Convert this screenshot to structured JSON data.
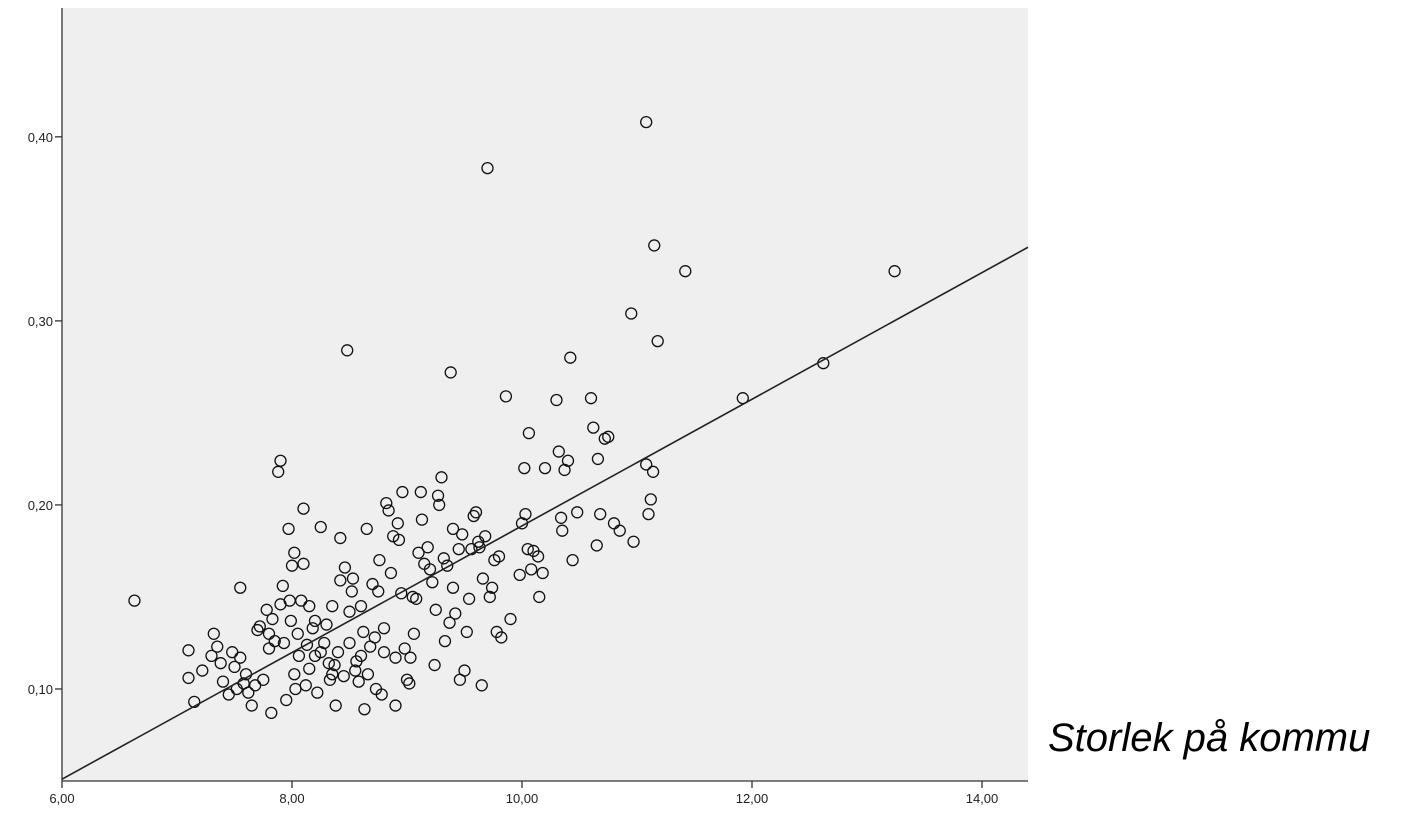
{
  "side_text": "Storlek på kommu",
  "chart_data": {
    "type": "scatter",
    "title": "",
    "xlabel": "",
    "ylabel": "",
    "xlim": [
      6.0,
      14.4
    ],
    "ylim": [
      0.05,
      0.47
    ],
    "x_ticks": [
      6.0,
      8.0,
      10.0,
      12.0,
      14.0
    ],
    "x_tick_labels": [
      "6,00",
      "8,00",
      "10,00",
      "12,00",
      "14,00"
    ],
    "y_ticks": [
      0.1,
      0.2,
      0.3,
      0.4
    ],
    "y_tick_labels": [
      "0,10",
      "0,20",
      "0,30",
      "0,40"
    ],
    "grid": false,
    "plot_background": "#efefef",
    "marker": "open-circle",
    "regression_line": {
      "x": [
        6.0,
        14.4
      ],
      "y": [
        0.051,
        0.34
      ]
    },
    "points": [
      [
        6.63,
        0.148
      ],
      [
        7.1,
        0.121
      ],
      [
        7.1,
        0.106
      ],
      [
        7.15,
        0.093
      ],
      [
        7.22,
        0.11
      ],
      [
        7.3,
        0.118
      ],
      [
        7.32,
        0.13
      ],
      [
        7.35,
        0.123
      ],
      [
        7.38,
        0.114
      ],
      [
        7.4,
        0.104
      ],
      [
        7.45,
        0.097
      ],
      [
        7.48,
        0.12
      ],
      [
        7.5,
        0.112
      ],
      [
        7.52,
        0.1
      ],
      [
        7.55,
        0.155
      ],
      [
        7.55,
        0.117
      ],
      [
        7.58,
        0.103
      ],
      [
        7.6,
        0.108
      ],
      [
        7.62,
        0.098
      ],
      [
        7.65,
        0.091
      ],
      [
        7.68,
        0.102
      ],
      [
        7.7,
        0.132
      ],
      [
        7.72,
        0.134
      ],
      [
        7.75,
        0.105
      ],
      [
        7.78,
        0.143
      ],
      [
        7.8,
        0.13
      ],
      [
        7.8,
        0.122
      ],
      [
        7.82,
        0.087
      ],
      [
        7.83,
        0.138
      ],
      [
        7.85,
        0.126
      ],
      [
        7.88,
        0.218
      ],
      [
        7.9,
        0.146
      ],
      [
        7.9,
        0.224
      ],
      [
        7.92,
        0.156
      ],
      [
        7.93,
        0.125
      ],
      [
        7.95,
        0.094
      ],
      [
        7.97,
        0.187
      ],
      [
        7.98,
        0.148
      ],
      [
        7.99,
        0.137
      ],
      [
        8.0,
        0.167
      ],
      [
        8.02,
        0.108
      ],
      [
        8.02,
        0.174
      ],
      [
        8.03,
        0.1
      ],
      [
        8.05,
        0.13
      ],
      [
        8.06,
        0.118
      ],
      [
        8.08,
        0.148
      ],
      [
        8.1,
        0.168
      ],
      [
        8.1,
        0.198
      ],
      [
        8.12,
        0.102
      ],
      [
        8.13,
        0.124
      ],
      [
        8.15,
        0.145
      ],
      [
        8.15,
        0.111
      ],
      [
        8.18,
        0.133
      ],
      [
        8.2,
        0.137
      ],
      [
        8.2,
        0.118
      ],
      [
        8.22,
        0.098
      ],
      [
        8.25,
        0.188
      ],
      [
        8.25,
        0.12
      ],
      [
        8.28,
        0.125
      ],
      [
        8.3,
        0.135
      ],
      [
        8.32,
        0.114
      ],
      [
        8.33,
        0.105
      ],
      [
        8.35,
        0.145
      ],
      [
        8.35,
        0.108
      ],
      [
        8.37,
        0.113
      ],
      [
        8.38,
        0.091
      ],
      [
        8.4,
        0.12
      ],
      [
        8.42,
        0.159
      ],
      [
        8.42,
        0.182
      ],
      [
        8.45,
        0.107
      ],
      [
        8.46,
        0.166
      ],
      [
        8.48,
        0.284
      ],
      [
        8.5,
        0.142
      ],
      [
        8.5,
        0.125
      ],
      [
        8.52,
        0.153
      ],
      [
        8.53,
        0.16
      ],
      [
        8.55,
        0.11
      ],
      [
        8.56,
        0.115
      ],
      [
        8.58,
        0.104
      ],
      [
        8.6,
        0.145
      ],
      [
        8.6,
        0.118
      ],
      [
        8.62,
        0.131
      ],
      [
        8.63,
        0.089
      ],
      [
        8.65,
        0.187
      ],
      [
        8.66,
        0.108
      ],
      [
        8.68,
        0.123
      ],
      [
        8.7,
        0.157
      ],
      [
        8.72,
        0.128
      ],
      [
        8.73,
        0.1
      ],
      [
        8.75,
        0.153
      ],
      [
        8.76,
        0.17
      ],
      [
        8.78,
        0.097
      ],
      [
        8.8,
        0.12
      ],
      [
        8.8,
        0.133
      ],
      [
        8.82,
        0.201
      ],
      [
        8.84,
        0.197
      ],
      [
        8.86,
        0.163
      ],
      [
        8.88,
        0.183
      ],
      [
        8.9,
        0.117
      ],
      [
        8.9,
        0.091
      ],
      [
        8.92,
        0.19
      ],
      [
        8.93,
        0.181
      ],
      [
        8.95,
        0.152
      ],
      [
        8.96,
        0.207
      ],
      [
        8.98,
        0.122
      ],
      [
        9.0,
        0.105
      ],
      [
        9.02,
        0.103
      ],
      [
        9.03,
        0.117
      ],
      [
        9.05,
        0.15
      ],
      [
        9.06,
        0.13
      ],
      [
        9.08,
        0.149
      ],
      [
        9.1,
        0.174
      ],
      [
        9.12,
        0.207
      ],
      [
        9.13,
        0.192
      ],
      [
        9.15,
        0.168
      ],
      [
        9.18,
        0.177
      ],
      [
        9.2,
        0.165
      ],
      [
        9.22,
        0.158
      ],
      [
        9.24,
        0.113
      ],
      [
        9.25,
        0.143
      ],
      [
        9.27,
        0.205
      ],
      [
        9.28,
        0.2
      ],
      [
        9.3,
        0.215
      ],
      [
        9.32,
        0.171
      ],
      [
        9.33,
        0.126
      ],
      [
        9.35,
        0.167
      ],
      [
        9.37,
        0.136
      ],
      [
        9.38,
        0.272
      ],
      [
        9.4,
        0.155
      ],
      [
        9.4,
        0.187
      ],
      [
        9.42,
        0.141
      ],
      [
        9.45,
        0.176
      ],
      [
        9.46,
        0.105
      ],
      [
        9.48,
        0.184
      ],
      [
        9.5,
        0.11
      ],
      [
        9.52,
        0.131
      ],
      [
        9.54,
        0.149
      ],
      [
        9.56,
        0.176
      ],
      [
        9.58,
        0.194
      ],
      [
        9.6,
        0.196
      ],
      [
        9.62,
        0.18
      ],
      [
        9.63,
        0.177
      ],
      [
        9.65,
        0.102
      ],
      [
        9.66,
        0.16
      ],
      [
        9.68,
        0.183
      ],
      [
        9.7,
        0.383
      ],
      [
        9.72,
        0.15
      ],
      [
        9.74,
        0.155
      ],
      [
        9.76,
        0.17
      ],
      [
        9.78,
        0.131
      ],
      [
        9.8,
        0.172
      ],
      [
        9.82,
        0.128
      ],
      [
        9.86,
        0.259
      ],
      [
        9.9,
        0.138
      ],
      [
        9.98,
        0.162
      ],
      [
        10.0,
        0.19
      ],
      [
        10.02,
        0.22
      ],
      [
        10.03,
        0.195
      ],
      [
        10.05,
        0.176
      ],
      [
        10.06,
        0.239
      ],
      [
        10.08,
        0.165
      ],
      [
        10.1,
        0.175
      ],
      [
        10.14,
        0.172
      ],
      [
        10.15,
        0.15
      ],
      [
        10.18,
        0.163
      ],
      [
        10.2,
        0.22
      ],
      [
        10.3,
        0.257
      ],
      [
        10.32,
        0.229
      ],
      [
        10.34,
        0.193
      ],
      [
        10.35,
        0.186
      ],
      [
        10.37,
        0.219
      ],
      [
        10.4,
        0.224
      ],
      [
        10.42,
        0.28
      ],
      [
        10.44,
        0.17
      ],
      [
        10.48,
        0.196
      ],
      [
        10.6,
        0.258
      ],
      [
        10.62,
        0.242
      ],
      [
        10.65,
        0.178
      ],
      [
        10.66,
        0.225
      ],
      [
        10.68,
        0.195
      ],
      [
        10.72,
        0.236
      ],
      [
        10.75,
        0.237
      ],
      [
        10.8,
        0.19
      ],
      [
        10.85,
        0.186
      ],
      [
        10.95,
        0.304
      ],
      [
        10.97,
        0.18
      ],
      [
        11.08,
        0.408
      ],
      [
        11.08,
        0.222
      ],
      [
        11.1,
        0.195
      ],
      [
        11.12,
        0.203
      ],
      [
        11.14,
        0.218
      ],
      [
        11.15,
        0.341
      ],
      [
        11.18,
        0.289
      ],
      [
        11.42,
        0.327
      ],
      [
        11.92,
        0.258
      ],
      [
        12.62,
        0.277
      ],
      [
        13.24,
        0.327
      ]
    ]
  }
}
